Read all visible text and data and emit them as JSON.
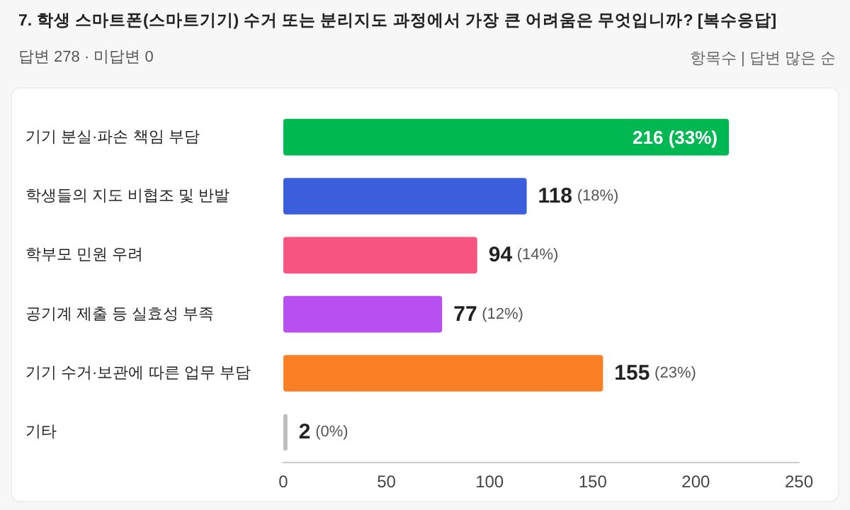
{
  "chart_data": {
    "type": "bar",
    "orientation": "horizontal",
    "title": "7. 학생 스마트폰(스마트기기) 수거 또는 분리지도 과정에서 가장 큰 어려움은 무엇입니까? [복수응답]",
    "subtitle": "답변 278 · 미답변 0",
    "annotations": [
      "항목수 | 답변 많은 순"
    ],
    "categories": [
      "기기 분실·파손 책임 부담",
      "학생들의 지도 비협조 및 반발",
      "학부모 민원 우려",
      "공기계 제출 등 실효성 부족",
      "기기 수거·보관에 따른 업무 부담",
      "기타"
    ],
    "values": [
      216,
      118,
      94,
      77,
      155,
      2
    ],
    "colors": [
      "#00b852",
      "#3b5fdc",
      "#f7557f",
      "#b84ff0",
      "#fb7f24",
      "#bdbdbd"
    ],
    "value_labels": [
      "216 (33%)",
      "118 (18%)",
      "94 (14%)",
      "77 (12%)",
      "155 (23%)",
      "2 (0%)"
    ],
    "xlim": [
      0,
      250
    ],
    "xticks": [
      0,
      50,
      100,
      150,
      200,
      250
    ],
    "grid": false
  }
}
